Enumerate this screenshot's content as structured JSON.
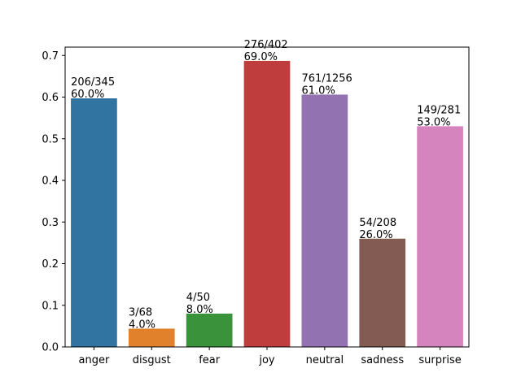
{
  "chart_data": {
    "type": "bar",
    "categories": [
      "anger",
      "disgust",
      "fear",
      "joy",
      "neutral",
      "sadness",
      "surprise"
    ],
    "values": [
      0.597,
      0.044,
      0.08,
      0.687,
      0.606,
      0.26,
      0.53
    ],
    "bar_labels": [
      [
        "206/345",
        "60.0%"
      ],
      [
        "3/68",
        "4.0%"
      ],
      [
        "4/50",
        "8.0%"
      ],
      [
        "276/402",
        "69.0%"
      ],
      [
        "761/1256",
        "61.0%"
      ],
      [
        "54/208",
        "26.0%"
      ],
      [
        "149/281",
        "53.0%"
      ]
    ],
    "colors": [
      "#3274a1",
      "#e1812c",
      "#3a923a",
      "#c03d3e",
      "#9372b2",
      "#845b53",
      "#d684bd"
    ],
    "ylim": [
      0,
      0.72
    ],
    "yticks": [
      "0.0",
      "0.1",
      "0.2",
      "0.3",
      "0.4",
      "0.5",
      "0.6",
      "0.7"
    ],
    "title": "",
    "xlabel": "",
    "ylabel": "",
    "grid": false,
    "legend": false
  }
}
